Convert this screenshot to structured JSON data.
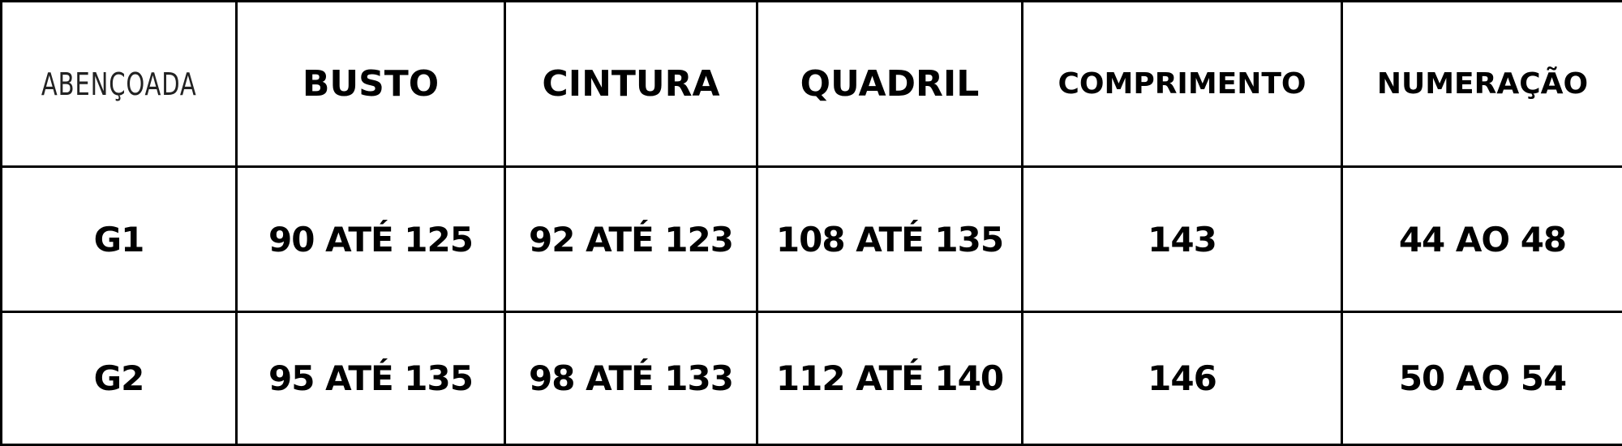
{
  "logo": "ABENÇOADA",
  "headers": [
    "BUSTO",
    "CINTURA",
    "QUADRIL",
    "COMPRIMENTO",
    "NUMERAÇÃO"
  ],
  "rows": [
    {
      "size": "G1",
      "busto": "90 ATÉ 125",
      "cintura": "92 ATÉ 123",
      "quadril": "108 ATÉ 135",
      "comprimento": "143",
      "numeracao": "44 AO 48"
    },
    {
      "size": "G2",
      "busto": "95 ATÉ 135",
      "cintura": "98 ATÉ 133",
      "quadril": "112 ATÉ 140",
      "comprimento": "146",
      "numeracao": "50 AO 54"
    }
  ]
}
